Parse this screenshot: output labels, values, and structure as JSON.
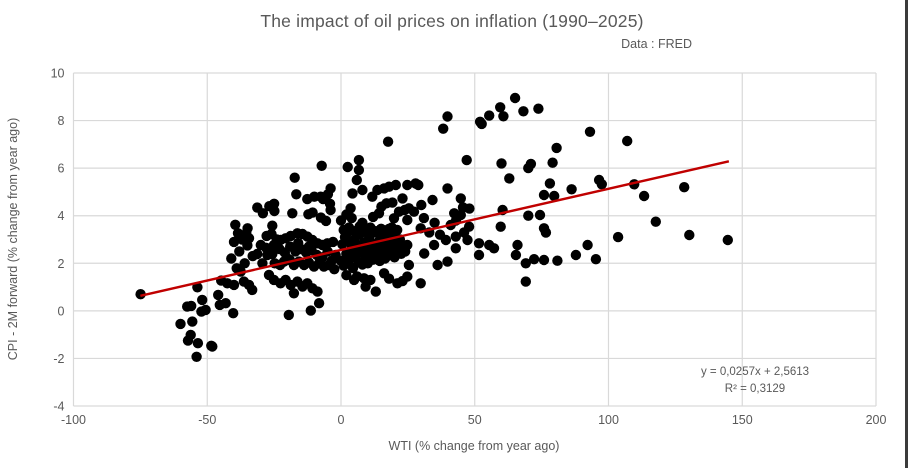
{
  "title": "The impact of oil prices on inflation (1990–2025)",
  "subtitle": "Data : FRED",
  "chart_data": {
    "type": "scatter",
    "title": "The impact of oil prices on inflation (1990–2025)",
    "subtitle": "Data : FRED",
    "xlabel": "WTI (% change from year ago)",
    "ylabel": "CPI - 2M forward (% change from year ago)",
    "xlim": [
      -100,
      200
    ],
    "ylim": [
      -4,
      10
    ],
    "x_ticks": [
      -100,
      -50,
      0,
      50,
      100,
      150,
      200
    ],
    "y_ticks": [
      -4,
      -2,
      0,
      2,
      4,
      6,
      8,
      10
    ],
    "grid": true,
    "legend": "none",
    "marker_color": "#000000",
    "gridline_color": "#d9d9d9",
    "text_color": "#595959",
    "trendline": {
      "slope": 0.0257,
      "intercept": 2.5613,
      "x_start": -75,
      "x_end": 145,
      "color": "#c00000",
      "equation_label": "y = 0,0257x + 2,5613",
      "r2_label": "R² = 0,3129"
    },
    "points": [
      [
        -74.9,
        0.7
      ],
      [
        -60,
        -0.55
      ],
      [
        -57.5,
        0.18
      ],
      [
        -57.2,
        -1.25
      ],
      [
        -56.2,
        -1.01
      ],
      [
        -56,
        0.21
      ],
      [
        -55.6,
        -0.45
      ],
      [
        -54,
        -1.93
      ],
      [
        -53.7,
        0.99
      ],
      [
        -53.5,
        -1.36
      ],
      [
        -52.2,
        -0.03
      ],
      [
        -51.9,
        0.46
      ],
      [
        -50.6,
        0.04
      ],
      [
        -48.5,
        -1.47
      ],
      [
        -48.1,
        -1.5
      ],
      [
        -45.9,
        0.67
      ],
      [
        -45.3,
        0.25
      ],
      [
        -44.8,
        1.27
      ],
      [
        -43.1,
        0.32
      ],
      [
        -42.5,
        1.16
      ],
      [
        -41,
        2.2
      ],
      [
        -40.3,
        -0.1
      ],
      [
        -40,
        1.09
      ],
      [
        -40,
        2.9
      ],
      [
        -39.5,
        3.62
      ],
      [
        -39,
        1.79
      ],
      [
        -38.5,
        3.26
      ],
      [
        -38,
        2.5
      ],
      [
        -37.5,
        1.65
      ],
      [
        -37,
        3.0
      ],
      [
        -36.3,
        1.23
      ],
      [
        -36,
        2.0
      ],
      [
        -35.4,
        3.26
      ],
      [
        -35,
        2.75
      ],
      [
        -34.9,
        3.47
      ],
      [
        -34.4,
        1.09
      ],
      [
        -34.4,
        3.05
      ],
      [
        -33.2,
        0.88
      ],
      [
        -33,
        2.3
      ],
      [
        -31.3,
        4.34
      ],
      [
        -29.2,
        4.1
      ],
      [
        -26.8,
        4.4
      ],
      [
        -25,
        4.5
      ],
      [
        -24.9,
        4.2
      ],
      [
        -18.2,
        4.1
      ],
      [
        -12.2,
        4.06
      ],
      [
        -10.6,
        4.13
      ],
      [
        -7.5,
        3.92
      ],
      [
        -5.6,
        3.78
      ],
      [
        -17.3,
        5.6
      ],
      [
        -16.7,
        4.9
      ],
      [
        -12.6,
        4.7
      ],
      [
        -10,
        4.8
      ],
      [
        -7.6,
        4.8
      ],
      [
        -6.7,
        4.7
      ],
      [
        -4.9,
        4.9
      ],
      [
        -4.1,
        4.5
      ],
      [
        -7.2,
        6.1
      ],
      [
        -25.7,
        3.58
      ],
      [
        -31.3,
        2.39
      ],
      [
        -30,
        2.77
      ],
      [
        -29.4,
        2.0
      ],
      [
        -28,
        2.65
      ],
      [
        -27.8,
        3.15
      ],
      [
        -27.5,
        2.35
      ],
      [
        -26.9,
        1.51
      ],
      [
        -26,
        3.23
      ],
      [
        -25.7,
        2.39
      ],
      [
        -25.1,
        2.77
      ],
      [
        -25.1,
        1.3
      ],
      [
        -24.8,
        2.0
      ],
      [
        -24,
        3.0
      ],
      [
        -23,
        2.6
      ],
      [
        -22.8,
        1.93
      ],
      [
        -22.6,
        2.98
      ],
      [
        -22.6,
        1.16
      ],
      [
        -21.3,
        2.07
      ],
      [
        -21,
        2.45
      ],
      [
        -20.7,
        3.05
      ],
      [
        -20.7,
        1.3
      ],
      [
        -20,
        2.2
      ],
      [
        -19.1,
        2.14
      ],
      [
        -19,
        2.7
      ],
      [
        -18.8,
        3.15
      ],
      [
        -18.8,
        1.09
      ],
      [
        -17.6,
        1.93
      ],
      [
        -17.6,
        0.74
      ],
      [
        -17,
        2.5
      ],
      [
        -16.3,
        3.26
      ],
      [
        -16.3,
        1.23
      ],
      [
        -16,
        2.85
      ],
      [
        -15.7,
        2.07
      ],
      [
        -15,
        2.6
      ],
      [
        -14.4,
        3.23
      ],
      [
        -14.4,
        1.02
      ],
      [
        -13.8,
        1.93
      ],
      [
        -13,
        2.45
      ],
      [
        -12.6,
        3.12
      ],
      [
        -12.6,
        1.16
      ],
      [
        -12,
        2.03
      ],
      [
        -12,
        2.7
      ],
      [
        -11,
        2.55
      ],
      [
        -10.7,
        2.98
      ],
      [
        -10.7,
        0.95
      ],
      [
        -10.1,
        1.86
      ],
      [
        -9,
        2.35
      ],
      [
        -8.8,
        2.84
      ],
      [
        -8.8,
        0.81
      ],
      [
        -8.2,
        2.0
      ],
      [
        -7,
        2.77
      ],
      [
        -7,
        2.25
      ],
      [
        -6.4,
        1.86
      ],
      [
        -5.1,
        2.84
      ],
      [
        -5,
        2.5
      ],
      [
        -4.5,
        1.93
      ],
      [
        -3.5,
        2.1
      ],
      [
        -3,
        2.9
      ],
      [
        -2.5,
        1.75
      ],
      [
        -2,
        2.35
      ],
      [
        -19.5,
        -0.17
      ],
      [
        -11.3,
        0.01
      ],
      [
        -8.2,
        0.32
      ],
      [
        0,
        2.1
      ],
      [
        0.5,
        2.8
      ],
      [
        1,
        1.9
      ],
      [
        1.5,
        3.1
      ],
      [
        2,
        2.4
      ],
      [
        2.5,
        2.0
      ],
      [
        3,
        2.9
      ],
      [
        3.5,
        2.2
      ],
      [
        4,
        2.6
      ],
      [
        4.5,
        1.8
      ],
      [
        5,
        3.0
      ],
      [
        5.5,
        2.35
      ],
      [
        6,
        2.7
      ],
      [
        6.5,
        2.05
      ],
      [
        7,
        3.2
      ],
      [
        7.5,
        2.5
      ],
      [
        8,
        1.95
      ],
      [
        8.5,
        2.85
      ],
      [
        9,
        2.3
      ],
      [
        9.5,
        2.65
      ],
      [
        10,
        2.0
      ],
      [
        10.5,
        3.05
      ],
      [
        11,
        2.45
      ],
      [
        11.5,
        2.75
      ],
      [
        12,
        2.15
      ],
      [
        12.5,
        3.3
      ],
      [
        13,
        2.55
      ],
      [
        13.5,
        2.3
      ],
      [
        14,
        2.9
      ],
      [
        14.5,
        2.1
      ],
      [
        15,
        2.7
      ],
      [
        15.5,
        2.4
      ],
      [
        16,
        3.1
      ],
      [
        16.5,
        2.2
      ],
      [
        17,
        2.6
      ],
      [
        17.5,
        2.95
      ],
      [
        18,
        2.35
      ],
      [
        18.5,
        2.75
      ],
      [
        19,
        2.5
      ],
      [
        19.5,
        3.2
      ],
      [
        20,
        2.25
      ],
      [
        20.5,
        2.85
      ],
      [
        21,
        2.55
      ],
      [
        22,
        3.0
      ],
      [
        22.5,
        2.4
      ],
      [
        23,
        2.7
      ],
      [
        24,
        2.5
      ],
      [
        24.8,
        1.44
      ],
      [
        25.4,
        1.93
      ],
      [
        24.8,
        2.77
      ],
      [
        1,
        3.4
      ],
      [
        3,
        3.5
      ],
      [
        5,
        3.35
      ],
      [
        7,
        3.55
      ],
      [
        9,
        3.4
      ],
      [
        11,
        3.5
      ],
      [
        13,
        3.35
      ],
      [
        15,
        3.45
      ],
      [
        17,
        3.3
      ],
      [
        19,
        3.5
      ],
      [
        21,
        3.4
      ],
      [
        2,
        3.25
      ],
      [
        6,
        3.25
      ],
      [
        10,
        3.3
      ],
      [
        14,
        3.25
      ],
      [
        18,
        3.45
      ],
      [
        4.9,
        1.3
      ],
      [
        8.6,
        1.37
      ],
      [
        9.2,
        1.02
      ],
      [
        13,
        0.81
      ],
      [
        16.1,
        1.58
      ],
      [
        21.1,
        1.16
      ],
      [
        2,
        1.5
      ],
      [
        6,
        1.45
      ],
      [
        11,
        1.3
      ],
      [
        18,
        1.35
      ],
      [
        23,
        1.25
      ],
      [
        -3.9,
        5.15
      ],
      [
        -3.9,
        4.24
      ],
      [
        3.6,
        4.31
      ],
      [
        4.3,
        4.94
      ],
      [
        5.9,
        5.5
      ],
      [
        6.7,
        6.34
      ],
      [
        6.7,
        5.92
      ],
      [
        8,
        5.08
      ],
      [
        11.7,
        4.8
      ],
      [
        13.6,
        5.08
      ],
      [
        14.2,
        4.1
      ],
      [
        15.1,
        4.38
      ],
      [
        16.1,
        5.15
      ],
      [
        17,
        4.52
      ],
      [
        18,
        5.22
      ],
      [
        19.2,
        4.55
      ],
      [
        19.8,
        3.89
      ],
      [
        20.5,
        5.29
      ],
      [
        21.7,
        4.17
      ],
      [
        23,
        4.73
      ],
      [
        23.8,
        4.24
      ],
      [
        24.8,
        5.29
      ],
      [
        24.8,
        3.82
      ],
      [
        25.4,
        4.31
      ],
      [
        27.3,
        4.17
      ],
      [
        27.9,
        5.36
      ],
      [
        28.9,
        5.29
      ],
      [
        17.6,
        7.11
      ],
      [
        2.5,
        6.05
      ],
      [
        0,
        3.8
      ],
      [
        4,
        3.9
      ],
      [
        8,
        3.7
      ],
      [
        12,
        3.95
      ],
      [
        2,
        4.05
      ],
      [
        29.8,
        1.16
      ],
      [
        29.8,
        3.47
      ],
      [
        31.1,
        2.41
      ],
      [
        34.2,
        4.66
      ],
      [
        34.8,
        2.77
      ],
      [
        36.1,
        1.93
      ],
      [
        39.2,
        2.98
      ],
      [
        39.8,
        5.15
      ],
      [
        39.8,
        2.07
      ],
      [
        41,
        3.61
      ],
      [
        42.3,
        4.1
      ],
      [
        42.9,
        3.12
      ],
      [
        42.9,
        2.63
      ],
      [
        44.8,
        4.73
      ],
      [
        45.6,
        4.35
      ],
      [
        44.8,
        4.03
      ],
      [
        47.3,
        2.98
      ],
      [
        47.9,
        3.54
      ],
      [
        47,
        6.34
      ],
      [
        30,
        4.45
      ],
      [
        31,
        3.9
      ],
      [
        33,
        3.3
      ],
      [
        35,
        3.7
      ],
      [
        37,
        3.2
      ],
      [
        43,
        3.8
      ],
      [
        46,
        3.3
      ],
      [
        48,
        4.3
      ],
      [
        39.8,
        8.17
      ],
      [
        38.2,
        7.66
      ],
      [
        52,
        7.95
      ],
      [
        52.6,
        7.86
      ],
      [
        55.4,
        8.21
      ],
      [
        59.5,
        8.56
      ],
      [
        60.7,
        8.18
      ],
      [
        65.1,
        8.95
      ],
      [
        68.2,
        8.39
      ],
      [
        73.8,
        8.5
      ],
      [
        60,
        6.2
      ],
      [
        62.9,
        5.57
      ],
      [
        70,
        6.0
      ],
      [
        51.6,
        2.84
      ],
      [
        51.6,
        2.35
      ],
      [
        55.4,
        2.77
      ],
      [
        57.2,
        2.63
      ],
      [
        59.7,
        3.54
      ],
      [
        60.4,
        4.24
      ],
      [
        66,
        2.77
      ],
      [
        65.4,
        2.35
      ],
      [
        69.1,
        2.0
      ],
      [
        69.1,
        1.23
      ],
      [
        70,
        4.0
      ],
      [
        71,
        6.18
      ],
      [
        72.2,
        2.17
      ],
      [
        74.4,
        4.03
      ],
      [
        75.9,
        2.14
      ],
      [
        75.9,
        4.87
      ],
      [
        75.9,
        3.47
      ],
      [
        76.6,
        3.29
      ],
      [
        78.1,
        5.36
      ],
      [
        79.1,
        6.23
      ],
      [
        79.7,
        4.83
      ],
      [
        80.6,
        6.85
      ],
      [
        80.9,
        2.11
      ],
      [
        86.2,
        5.11
      ],
      [
        87.8,
        2.35
      ],
      [
        92.2,
        2.77
      ],
      [
        93.1,
        7.53
      ],
      [
        95.3,
        2.17
      ],
      [
        96.5,
        5.5
      ],
      [
        97.5,
        5.32
      ],
      [
        103.6,
        3.1
      ],
      [
        107,
        7.14
      ],
      [
        109.6,
        5.32
      ],
      [
        113.3,
        4.83
      ],
      [
        117.7,
        3.75
      ],
      [
        128.3,
        5.2
      ],
      [
        130.2,
        3.19
      ],
      [
        144.6,
        2.98
      ]
    ]
  }
}
